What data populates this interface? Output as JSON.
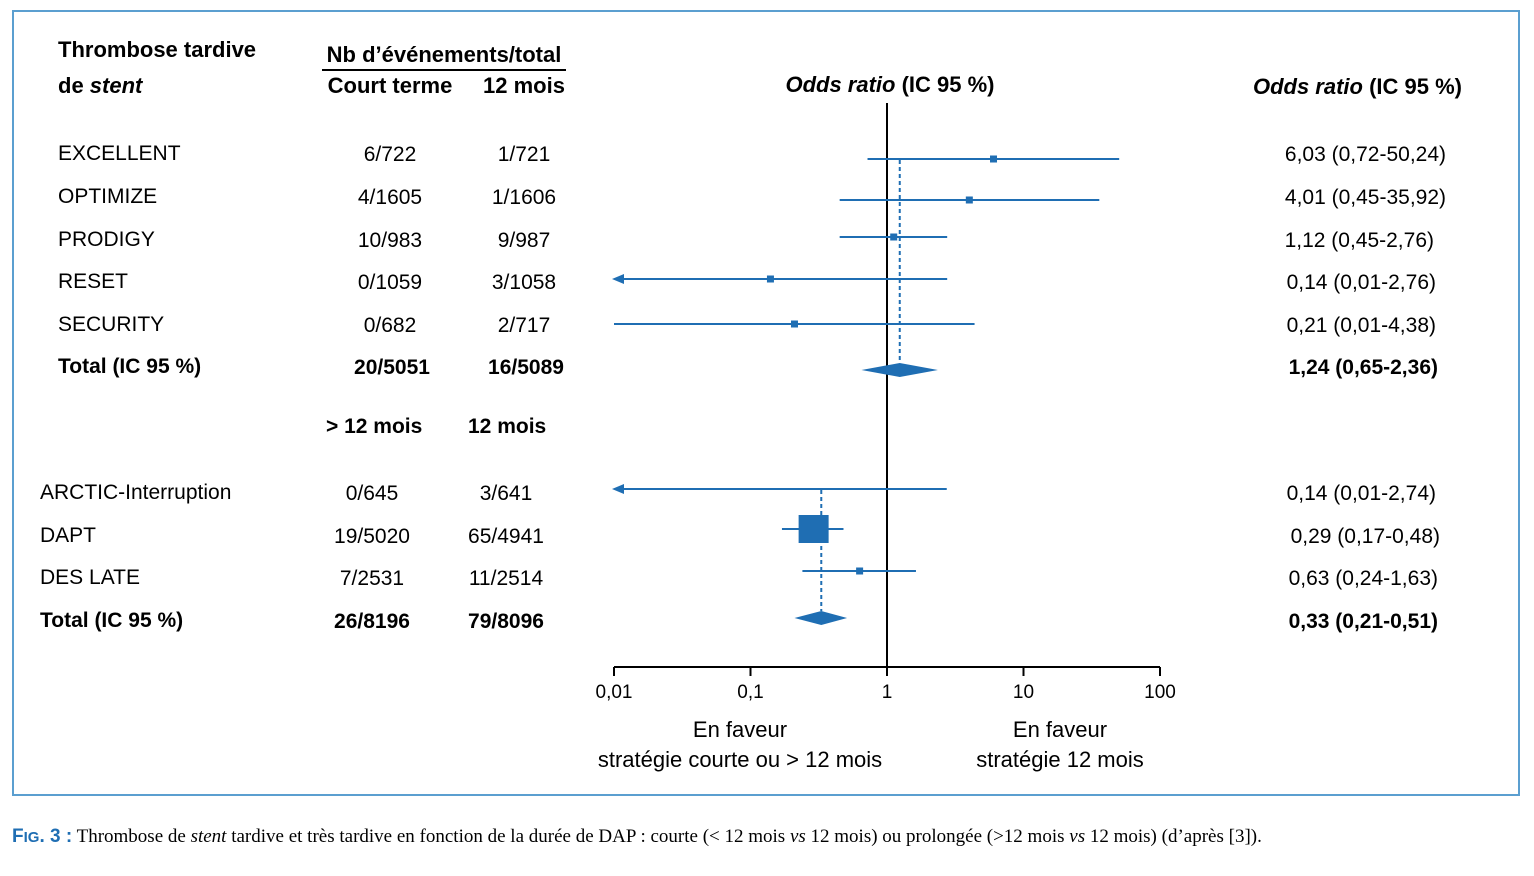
{
  "header": {
    "title_line1": "Thrombose tardive",
    "title_line2_prefix": "de ",
    "title_line2_italic": "stent",
    "events_header": "Nb d’événements/total",
    "col1_header": "Court terme",
    "col2_header": "12 mois",
    "or_header_italic": "Odds ratio",
    "or_header_rest": " (IC 95 %)",
    "right_header_italic": "Odds ratio",
    "right_header_rest": " (IC 95 %)"
  },
  "group1_rows": [
    {
      "study": "EXCELLENT",
      "col1": "6/722",
      "col2": "1/721",
      "ci_text": "6,03 (0,72-50,24)"
    },
    {
      "study": "OPTIMIZE",
      "col1": "4/1605",
      "col2": "1/1606",
      "ci_text": "4,01 (0,45-35,92)"
    },
    {
      "study": "PRODIGY",
      "col1": "10/983",
      "col2": "9/987",
      "ci_text": "1,12 (0,45-2,76)"
    },
    {
      "study": "RESET",
      "col1": "0/1059",
      "col2": "3/1058",
      "ci_text": "0,14 (0,01-2,76)"
    },
    {
      "study": "SECURITY",
      "col1": "0/682",
      "col2": "2/717",
      "ci_text": "0,21 (0,01-4,38)"
    }
  ],
  "group1_total": {
    "label": "Total (IC 95 %)",
    "col1": "20/5051",
    "col2": "16/5089",
    "ci_text": "1,24 (0,65-2,36)"
  },
  "group2_header": {
    "col1": "> 12 mois",
    "col2": "12 mois"
  },
  "group2_rows": [
    {
      "study": "ARCTIC-Interruption",
      "col1": "0/645",
      "col2": "3/641",
      "ci_text": "0,14 (0,01-2,74)"
    },
    {
      "study": "DAPT",
      "col1": "19/5020",
      "col2": "65/4941",
      "ci_text": "0,29 (0,17-0,48)"
    },
    {
      "study": "DES LATE",
      "col1": "7/2531",
      "col2": "11/2514",
      "ci_text": "0,63 (0,24-1,63)"
    }
  ],
  "group2_total": {
    "label": "Total (IC 95 %)",
    "col1": "26/8196",
    "col2": "79/8096",
    "ci_text": "0,33 (0,21-0,51)"
  },
  "footer": {
    "left_line1": "En faveur",
    "left_line2": "stratégie courte ou > 12 mois",
    "right_line1": "En faveur",
    "right_line2": "stratégie  12 mois"
  },
  "caption": {
    "fig_label_a": "F",
    "fig_label_b": "IG",
    "fig_label_c": ". 3 :",
    "text1": " Thrombose de ",
    "text_italic1": "stent",
    "text2": " tardive et très tardive en fonction de la durée de DAP : courte (< 12 mois ",
    "text_italic2": "vs",
    "text3": " 12 mois) ou prolongée (>12 mois ",
    "text_italic3": "vs",
    "text4": " 12 mois) (d’après [3])."
  },
  "chart_data": {
    "type": "forest",
    "x_scale": "log",
    "x_ticks": [
      "0,01",
      "0,1",
      "1",
      "10",
      "100"
    ],
    "x_tick_values": [
      0.01,
      0.1,
      1,
      10,
      100
    ],
    "xlim": [
      0.01,
      100
    ],
    "reference_line": 1,
    "color": "#1f6eb3",
    "studies": [
      {
        "name": "EXCELLENT",
        "or": 6.03,
        "lo": 0.72,
        "hi": 50.24,
        "weight": "small",
        "group": 1
      },
      {
        "name": "OPTIMIZE",
        "or": 4.01,
        "lo": 0.45,
        "hi": 35.92,
        "weight": "small",
        "group": 1
      },
      {
        "name": "PRODIGY",
        "or": 1.12,
        "lo": 0.45,
        "hi": 2.76,
        "weight": "small",
        "group": 1
      },
      {
        "name": "RESET",
        "or": 0.14,
        "lo": 0.01,
        "hi": 2.76,
        "weight": "small",
        "group": 1,
        "arrow_left": true
      },
      {
        "name": "SECURITY",
        "or": 0.21,
        "lo": 0.01,
        "hi": 4.38,
        "weight": "small",
        "group": 1
      },
      {
        "name": "ARCTIC-Interruption",
        "or": 0.14,
        "lo": 0.01,
        "hi": 2.74,
        "weight": "none",
        "group": 2,
        "arrow_left": true
      },
      {
        "name": "DAPT",
        "or": 0.29,
        "lo": 0.17,
        "hi": 0.48,
        "weight": "large",
        "group": 2
      },
      {
        "name": "DES LATE",
        "or": 0.63,
        "lo": 0.24,
        "hi": 1.63,
        "weight": "small",
        "group": 2
      }
    ],
    "pooled": [
      {
        "name": "Total (IC 95 %)",
        "or": 1.24,
        "lo": 0.65,
        "hi": 2.36,
        "group": 1
      },
      {
        "name": "Total (IC 95 %)",
        "or": 0.33,
        "lo": 0.21,
        "hi": 0.51,
        "group": 2
      }
    ]
  }
}
